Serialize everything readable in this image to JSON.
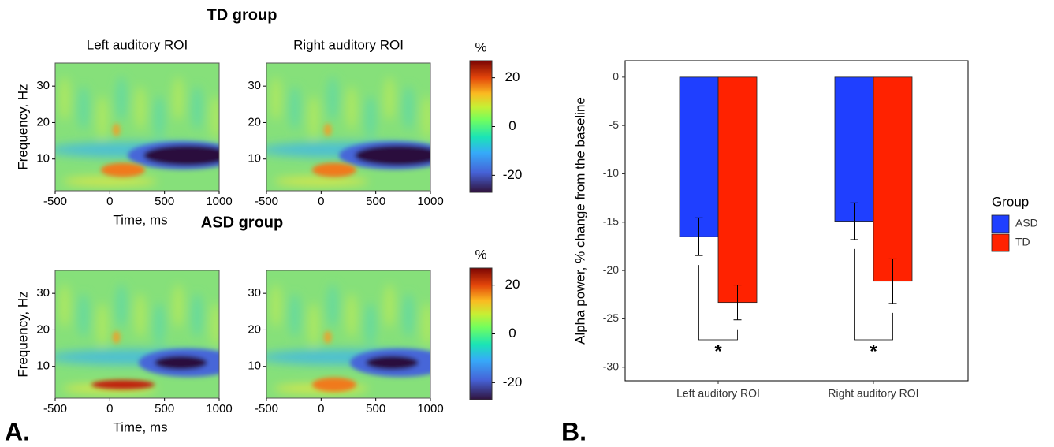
{
  "panel_labels": [
    "A.",
    "B."
  ],
  "chart_data": [
    {
      "type": "heatmap",
      "title": "TD group",
      "columns": [
        "Left auditory ROI",
        "Right auditory ROI"
      ],
      "xlabel": "Time, ms",
      "ylabel": "Frequency, Hz",
      "xlim": [
        -500,
        1000
      ],
      "xticks": [
        -500,
        0,
        500,
        1000
      ],
      "ylim": [
        1.3,
        36.3
      ],
      "yticks": [
        10,
        20,
        30
      ],
      "colorbar_label": "%",
      "clim": [
        -27,
        27
      ],
      "cticks": [
        -20,
        0,
        20
      ]
    },
    {
      "type": "heatmap",
      "title": "ASD group",
      "xlabel": "Time, ms",
      "ylabel": "Frequency, Hz",
      "xlim": [
        -500,
        1000
      ],
      "xticks": [
        -500,
        0,
        500,
        1000
      ],
      "ylim": [
        1.3,
        36.3
      ],
      "yticks": [
        10,
        20,
        30
      ],
      "colorbar_label": "%",
      "clim": [
        -27,
        27
      ],
      "cticks": [
        -20,
        0,
        20
      ]
    },
    {
      "type": "bar",
      "ylabel": "Alpha power, % change from the baseline",
      "categories": [
        "Left auditory ROI",
        "Right auditory ROI"
      ],
      "legend_title": "Group",
      "series": [
        {
          "name": "ASD",
          "color": "#1f3fff",
          "values": [
            -16.5,
            -14.9
          ],
          "errors": [
            1.95,
            1.9
          ]
        },
        {
          "name": "TD",
          "color": "#ff2200",
          "values": [
            -23.3,
            -21.1
          ],
          "errors": [
            1.8,
            2.3
          ]
        }
      ],
      "ylim": [
        -31.4,
        1.7
      ],
      "yticks": [
        0,
        -5,
        -10,
        -15,
        -20,
        -25,
        -30
      ],
      "significance": [
        "*",
        "*"
      ]
    }
  ]
}
